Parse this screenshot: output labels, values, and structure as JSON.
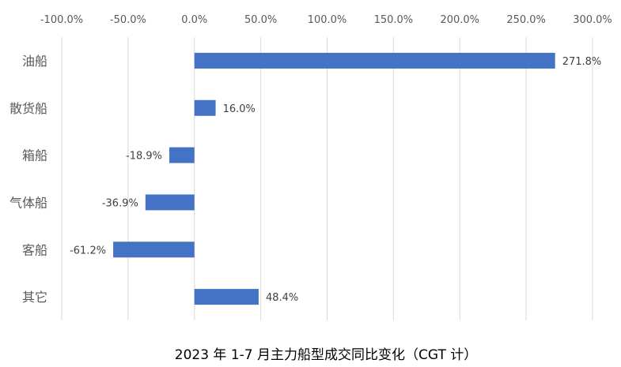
{
  "chart_data": {
    "type": "bar",
    "orientation": "horizontal",
    "title": "2023 年 1-7 月主力船型成交同比变化（CGT 计）",
    "categories": [
      "油船",
      "散货船",
      "箱船",
      "气体船",
      "客船",
      "其它"
    ],
    "values": [
      271.8,
      16.0,
      -18.9,
      -36.9,
      -61.2,
      48.4
    ],
    "data_labels": [
      "271.8%",
      "16.0%",
      "-18.9%",
      "-36.9%",
      "-61.2%",
      "48.4%"
    ],
    "x_ticks": [
      "-100.0%",
      "-50.0%",
      "0.0%",
      "50.0%",
      "100.0%",
      "150.0%",
      "200.0%",
      "250.0%",
      "300.0%"
    ],
    "x_tick_values": [
      -100,
      -50,
      0,
      50,
      100,
      150,
      200,
      250,
      300
    ],
    "xlim": [
      -100,
      300
    ],
    "x_axis_position": "top",
    "grid": true,
    "legend": "none",
    "bar_color": "#4472C4"
  }
}
